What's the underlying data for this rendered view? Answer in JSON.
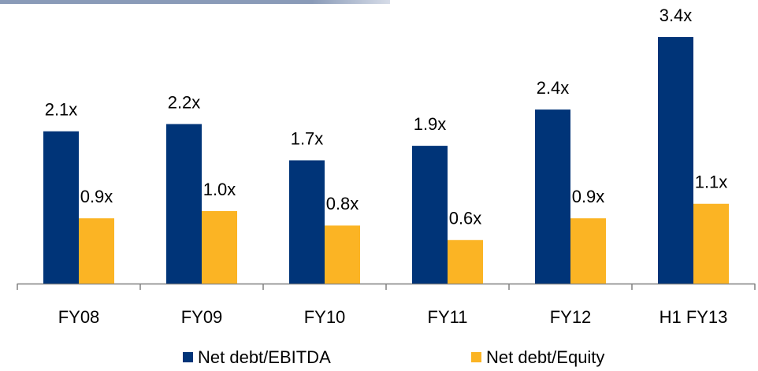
{
  "chart_data": {
    "type": "bar",
    "categories": [
      "FY08",
      "FY09",
      "FY10",
      "FY11",
      "FY12",
      "H1 FY13"
    ],
    "series": [
      {
        "name": "Net debt/EBITDA",
        "color": "#003478",
        "values": [
          2.1,
          2.2,
          1.7,
          1.9,
          2.4,
          3.4
        ],
        "value_labels": [
          "2.1x",
          "2.2x",
          "1.7x",
          "1.9x",
          "2.4x",
          "3.4x"
        ]
      },
      {
        "name": "Net debt/Equity",
        "color": "#fbb424",
        "values": [
          0.9,
          1.0,
          0.8,
          0.6,
          0.9,
          1.1
        ],
        "value_labels": [
          "0.9x",
          "1.0x",
          "0.8x",
          "0.6x",
          "0.9x",
          "1.1x"
        ]
      }
    ],
    "ylim": [
      0,
      3.9
    ]
  }
}
